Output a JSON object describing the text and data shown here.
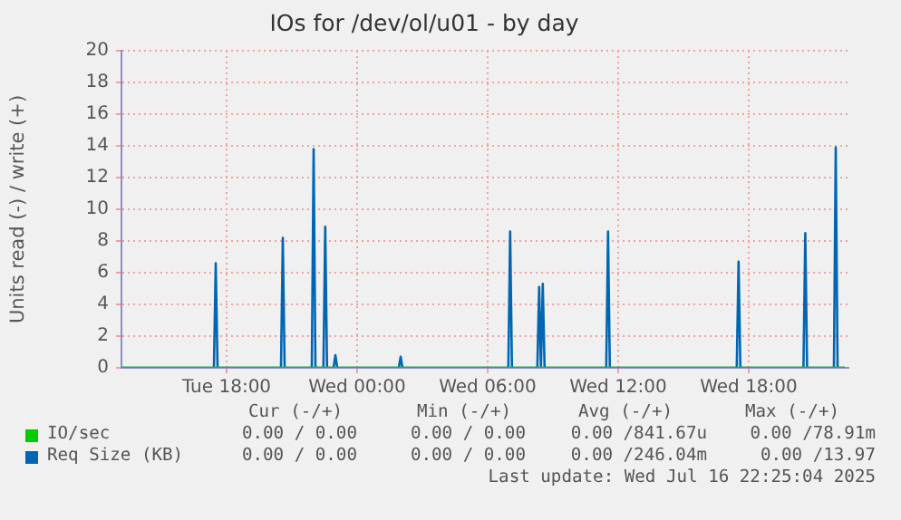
{
  "chart_data": {
    "type": "line",
    "title": "IOs for /dev/ol/u01 - by day",
    "ylabel": "Units read (-) / write (+)",
    "xlim": [
      "2025-07-15T13:10",
      "2025-07-16T22:35"
    ],
    "xticks": [
      {
        "value": "2025-07-15T18:00",
        "label": "Tue 18:00"
      },
      {
        "value": "2025-07-16T00:00",
        "label": "Wed 00:00"
      },
      {
        "value": "2025-07-16T06:00",
        "label": "Wed 06:00"
      },
      {
        "value": "2025-07-16T12:00",
        "label": "Wed 12:00"
      },
      {
        "value": "2025-07-16T18:00",
        "label": "Wed 18:00"
      }
    ],
    "ylim": [
      0,
      20
    ],
    "yticks": [
      0,
      2,
      4,
      6,
      8,
      10,
      12,
      14,
      16,
      18,
      20
    ],
    "grid": true,
    "legend": "bottom left",
    "marker": "none",
    "line_style": "solid",
    "series": [
      {
        "name": "IO/sec",
        "color": "#00cc00",
        "x": [
          "2025-07-15T13:10",
          "2025-07-16T22:25"
        ],
        "values": [
          0,
          0
        ]
      },
      {
        "name": "Req Size (KB)",
        "color": "#0066b3",
        "x": [
          "2025-07-15T13:10",
          "2025-07-15T17:25",
          "2025-07-15T17:30",
          "2025-07-15T17:35",
          "2025-07-15T20:30",
          "2025-07-15T20:35",
          "2025-07-15T20:40",
          "2025-07-15T21:55",
          "2025-07-15T22:00",
          "2025-07-15T22:05",
          "2025-07-15T22:27",
          "2025-07-15T22:32",
          "2025-07-15T22:37",
          "2025-07-15T22:55",
          "2025-07-15T23:00",
          "2025-07-15T23:05",
          "2025-07-16T01:55",
          "2025-07-16T02:00",
          "2025-07-16T02:05",
          "2025-07-16T06:57",
          "2025-07-16T07:02",
          "2025-07-16T07:07",
          "2025-07-16T08:17",
          "2025-07-16T08:22",
          "2025-07-16T08:27",
          "2025-07-16T08:32",
          "2025-07-16T08:37",
          "2025-07-16T11:27",
          "2025-07-16T11:32",
          "2025-07-16T11:37",
          "2025-07-16T17:27",
          "2025-07-16T17:32",
          "2025-07-16T17:37",
          "2025-07-16T20:31",
          "2025-07-16T20:36",
          "2025-07-16T20:41",
          "2025-07-16T21:55",
          "2025-07-16T22:00",
          "2025-07-16T22:05",
          "2025-07-16T22:25"
        ],
        "values": [
          0,
          0,
          6.6,
          0,
          0,
          8.2,
          0,
          0,
          13.8,
          0,
          0,
          8.9,
          0,
          0,
          0.8,
          0,
          0,
          0.7,
          0,
          0,
          8.6,
          0,
          0,
          5.1,
          0,
          5.3,
          0,
          0,
          8.6,
          0,
          0,
          6.7,
          0,
          0,
          8.5,
          0,
          0,
          13.9,
          0,
          0
        ]
      }
    ],
    "annotations": [
      "Cur (-/+)",
      "Min (-/+)",
      "Avg (-/+)",
      "Max (-/+)",
      "0.00 / 0.00",
      "0.00 / 0.00",
      "0.00 /841.67u",
      "0.00 /78.91m",
      "0.00 / 0.00",
      "0.00 / 0.00",
      "0.00 /246.04m",
      "0.00 /13.97",
      "Last update: Wed Jul 16 22:25:04 2025"
    ]
  }
}
